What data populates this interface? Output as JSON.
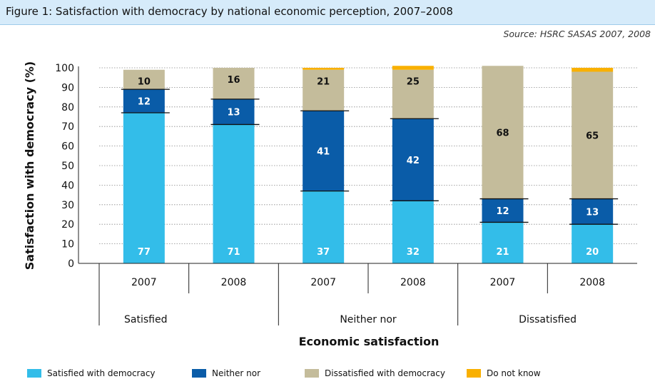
{
  "figure_title": "Figure 1: Satisfaction with democracy by national economic perception, 2007–2008",
  "source": "Source: HSRC SASAS 2007, 2008",
  "chart_data": {
    "type": "bar",
    "stacked": true,
    "ylabel": "Satisfaction with democracy (%)",
    "xlabel": "Economic satisfaction",
    "ylim": [
      0,
      100
    ],
    "yticks": [
      0,
      10,
      20,
      30,
      40,
      50,
      60,
      70,
      80,
      90,
      100
    ],
    "grid": true,
    "legend_position": "bottom",
    "groups": [
      "Satisfied",
      "Neither nor",
      "Dissatisfied"
    ],
    "categories": [
      "2007",
      "2008",
      "2007",
      "2008",
      "2007",
      "2008"
    ],
    "category_group": [
      0,
      0,
      1,
      1,
      2,
      2
    ],
    "series": [
      {
        "name": "Satisfied with democracy",
        "color": "#33bde9",
        "values": [
          77,
          71,
          37,
          32,
          21,
          20
        ],
        "labels": [
          "77",
          "71",
          "37",
          "32",
          "21",
          "20"
        ]
      },
      {
        "name": "Neither nor",
        "color": "#0a5ca8",
        "values": [
          12,
          13,
          41,
          42,
          12,
          13
        ],
        "labels": [
          "12",
          "13",
          "41",
          "42",
          "12",
          "13"
        ]
      },
      {
        "name": "Dissatisfied with democracy",
        "color": "#c4bc9b",
        "values": [
          10,
          16,
          21,
          25,
          68,
          65
        ],
        "labels": [
          "10",
          "16",
          "21",
          "25",
          "68",
          "65"
        ]
      },
      {
        "name": "Do not know",
        "color": "#f9b000",
        "values": [
          0,
          0,
          1,
          2,
          0,
          2
        ],
        "labels": [
          "",
          "",
          "",
          "",
          "",
          ""
        ]
      }
    ]
  }
}
